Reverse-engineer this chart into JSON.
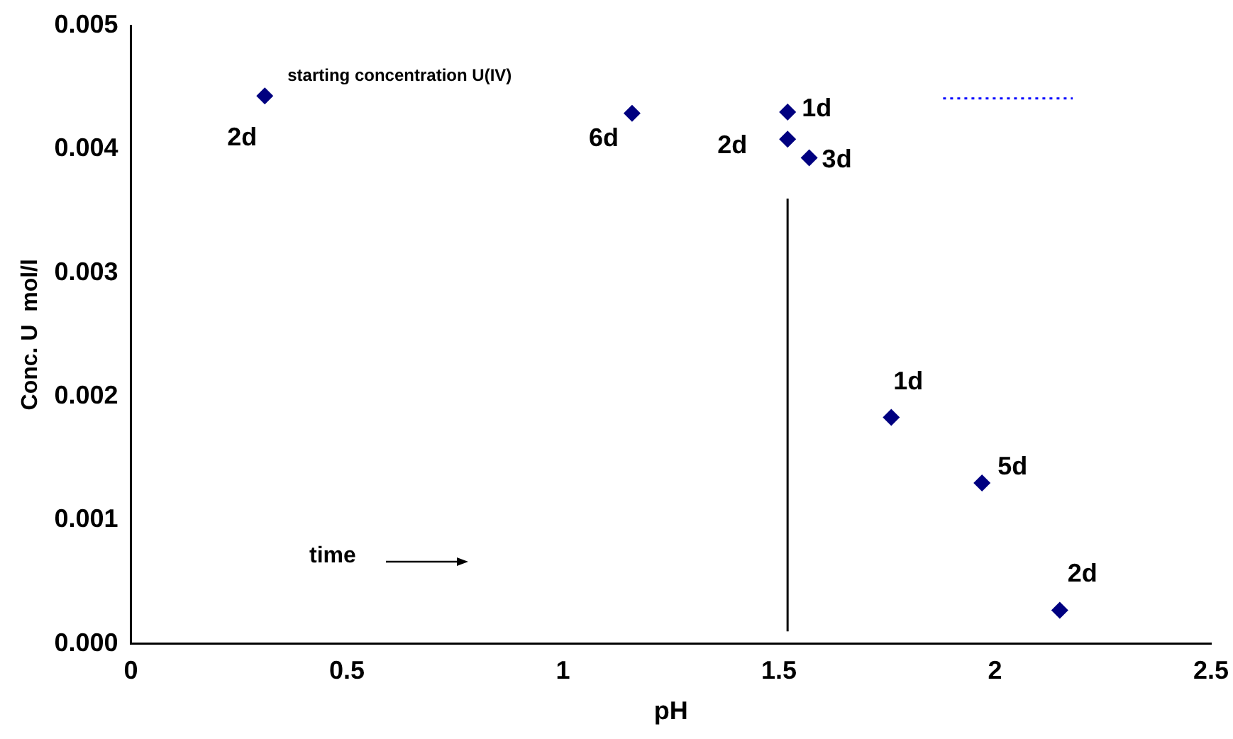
{
  "chart_data": {
    "type": "scatter",
    "xlabel": "pH",
    "ylabel": "Conc. U  mol/l",
    "xlim": [
      0,
      2.5
    ],
    "xticks": [
      0,
      0.5,
      1,
      1.5,
      2,
      2.5
    ],
    "ylim": [
      0,
      0.005
    ],
    "yticks": [
      {
        "value": 0,
        "label": "0.000"
      },
      {
        "value": 0.001,
        "label": "0.001"
      },
      {
        "value": 0.002,
        "label": "0.002"
      },
      {
        "value": 0.003,
        "label": "0.003"
      },
      {
        "value": 0.004,
        "label": "0.004"
      },
      {
        "value": 0.005,
        "label": "0.005"
      }
    ],
    "grid": false,
    "legend": false,
    "series": [
      {
        "color": "#000080",
        "marker": "diamond",
        "x": [
          0.31,
          1.16,
          1.52,
          1.52,
          1.57,
          1.76,
          1.97,
          2.15
        ],
        "values": [
          0.00443,
          0.00429,
          0.0043,
          0.00408,
          0.00393,
          0.00183,
          0.0013,
          0.00027
        ]
      },
      {
        "type": "line",
        "color": "#000000",
        "marker": "none",
        "line_style": "solid",
        "x": [
          1.52,
          1.52
        ],
        "values": [
          0.0001,
          0.0036
        ]
      },
      {
        "type": "line",
        "color": "#0000ff",
        "marker": "none",
        "line_style": "dotted",
        "x": [
          1.88,
          2.18
        ],
        "values": [
          0.00441,
          0.00441
        ]
      }
    ],
    "annotations": [
      {
        "text": "2d",
        "x": 0.31,
        "y": 0.00443
      },
      {
        "text": "starting concentration U(IV)",
        "x": 0.31,
        "y": 0.00443
      },
      {
        "text": "6d",
        "x": 1.16,
        "y": 0.00429
      },
      {
        "text": "1d",
        "x": 1.52,
        "y": 0.0043
      },
      {
        "text": "2d",
        "x": 1.52,
        "y": 0.00408
      },
      {
        "text": "3d",
        "x": 1.57,
        "y": 0.00393
      },
      {
        "text": "1d",
        "x": 1.76,
        "y": 0.00183
      },
      {
        "text": "5d",
        "x": 1.97,
        "y": 0.0013
      },
      {
        "text": "2d",
        "x": 2.15,
        "y": 0.00027
      },
      "time"
    ]
  }
}
